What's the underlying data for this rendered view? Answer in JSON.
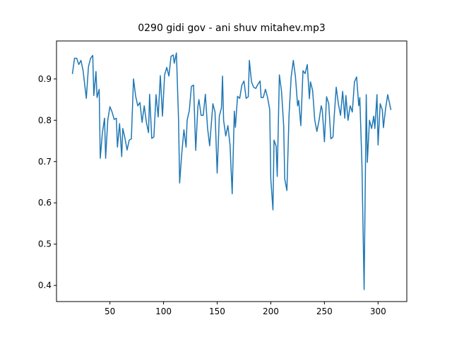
{
  "chart_data": {
    "type": "line",
    "title": "0290 gidi gov - ani shuv mitahev.mp3",
    "x": [
      15,
      17,
      19,
      21,
      23,
      25,
      28,
      30,
      32,
      34,
      35,
      37,
      38,
      40,
      41,
      43,
      45,
      46,
      48,
      50,
      52,
      54,
      56,
      57,
      59,
      61,
      62,
      64,
      66,
      68,
      70,
      72,
      74,
      76,
      78,
      80,
      82,
      84,
      86,
      87,
      89,
      91,
      93,
      95,
      97,
      99,
      101,
      103,
      105,
      107,
      109,
      110,
      112,
      114,
      115,
      117,
      119,
      121,
      122,
      124,
      126,
      128,
      130,
      132,
      133,
      135,
      137,
      139,
      141,
      143,
      144,
      146,
      148,
      150,
      152,
      154,
      155,
      156,
      158,
      160,
      162,
      164,
      166,
      167,
      169,
      171,
      173,
      175,
      177,
      179,
      180,
      182,
      184,
      186,
      188,
      190,
      191,
      193,
      195,
      197,
      199,
      200,
      202,
      203,
      205,
      206,
      208,
      210,
      212,
      213,
      215,
      217,
      219,
      221,
      223,
      225,
      226,
      228,
      230,
      232,
      234,
      236,
      237,
      239,
      241,
      243,
      245,
      247,
      248,
      250,
      252,
      254,
      256,
      258,
      259,
      261,
      263,
      265,
      267,
      269,
      270,
      272,
      274,
      276,
      278,
      280,
      282,
      283,
      285,
      287,
      289,
      290,
      292,
      294,
      296,
      297,
      299,
      300,
      302,
      304,
      305,
      307,
      309,
      312
    ],
    "values": [
      0.912,
      0.95,
      0.95,
      0.935,
      0.945,
      0.92,
      0.853,
      0.93,
      0.95,
      0.957,
      0.86,
      0.918,
      0.855,
      0.875,
      0.708,
      0.77,
      0.805,
      0.708,
      0.8,
      0.833,
      0.82,
      0.802,
      0.805,
      0.735,
      0.792,
      0.712,
      0.78,
      0.757,
      0.728,
      0.752,
      0.755,
      0.9,
      0.858,
      0.835,
      0.843,
      0.795,
      0.835,
      0.795,
      0.77,
      0.863,
      0.756,
      0.76,
      0.862,
      0.808,
      0.908,
      0.81,
      0.91,
      0.928,
      0.907,
      0.955,
      0.958,
      0.938,
      0.963,
      0.8,
      0.648,
      0.72,
      0.777,
      0.735,
      0.8,
      0.823,
      0.882,
      0.885,
      0.727,
      0.833,
      0.85,
      0.812,
      0.812,
      0.863,
      0.782,
      0.738,
      0.773,
      0.84,
      0.82,
      0.672,
      0.81,
      0.83,
      0.907,
      0.8,
      0.762,
      0.787,
      0.74,
      0.622,
      0.822,
      0.783,
      0.858,
      0.853,
      0.885,
      0.895,
      0.853,
      0.857,
      0.945,
      0.893,
      0.88,
      0.877,
      0.887,
      0.895,
      0.855,
      0.855,
      0.875,
      0.855,
      0.826,
      0.658,
      0.583,
      0.752,
      0.737,
      0.664,
      0.91,
      0.87,
      0.787,
      0.658,
      0.63,
      0.812,
      0.905,
      0.945,
      0.905,
      0.835,
      0.848,
      0.787,
      0.92,
      0.913,
      0.935,
      0.852,
      0.893,
      0.872,
      0.8,
      0.773,
      0.8,
      0.835,
      0.825,
      0.748,
      0.857,
      0.84,
      0.755,
      0.76,
      0.805,
      0.88,
      0.84,
      0.812,
      0.87,
      0.805,
      0.86,
      0.8,
      0.835,
      0.82,
      0.893,
      0.905,
      0.835,
      0.855,
      0.69,
      0.39,
      0.862,
      0.698,
      0.8,
      0.78,
      0.81,
      0.78,
      0.862,
      0.74,
      0.84,
      0.825,
      0.782,
      0.828,
      0.862,
      0.825
    ],
    "color": "#1f77b4",
    "xlim": [
      0.2,
      326.8
    ],
    "xticks": [
      50,
      100,
      150,
      200,
      250,
      300
    ],
    "ylim": [
      0.361,
      0.992
    ],
    "yticks": [
      0.4,
      0.5,
      0.6,
      0.7,
      0.8,
      0.9
    ]
  }
}
